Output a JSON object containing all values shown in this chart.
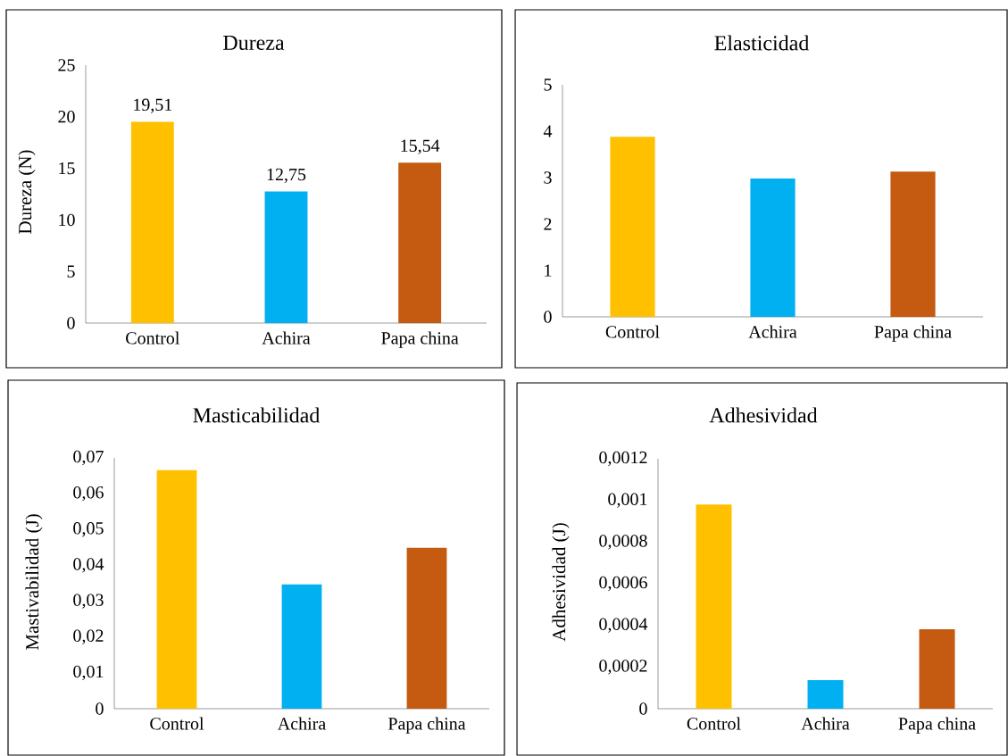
{
  "chart_data": [
    {
      "type": "bar",
      "title": "Dureza",
      "ylabel": "Dureza (N)",
      "categories": [
        "Control",
        "Achira",
        "Papa china"
      ],
      "values": [
        19.51,
        12.75,
        15.54
      ],
      "value_labels": [
        "19,51",
        "12,75",
        "15,54"
      ],
      "colors": [
        "#ffc000",
        "#00b0f0",
        "#c55a11"
      ],
      "ylim": [
        0,
        25
      ],
      "yticks": [
        0,
        5,
        10,
        15,
        20,
        25
      ]
    },
    {
      "type": "bar",
      "title": "Elasticidad",
      "categories": [
        "Control",
        "Achira",
        "Papa china"
      ],
      "values": [
        3.88,
        2.98,
        3.13
      ],
      "colors": [
        "#ffc000",
        "#00b0f0",
        "#c55a11"
      ],
      "ylim": [
        0,
        5
      ],
      "yticks": [
        0,
        1,
        2,
        3,
        4,
        5
      ]
    },
    {
      "type": "bar",
      "title": "Masticabilidad",
      "ylabel": "Mastivabilidad (J)",
      "categories": [
        "Control",
        "Achira",
        "Papa china"
      ],
      "values": [
        0.0666,
        0.0347,
        0.0449
      ],
      "colors": [
        "#ffc000",
        "#00b0f0",
        "#c55a11"
      ],
      "ylim": [
        0,
        0.07
      ],
      "yticks": [
        0,
        {
          "value": 0.01,
          "label": "0,01"
        },
        {
          "value": 0.02,
          "label": "0,02"
        },
        {
          "value": 0.03,
          "label": "0,03"
        },
        {
          "value": 0.04,
          "label": "0,04"
        },
        {
          "value": 0.05,
          "label": "0,05"
        },
        {
          "value": 0.06,
          "label": "0,06"
        },
        {
          "value": 0.07,
          "label": "0,07"
        }
      ]
    },
    {
      "type": "bar",
      "title": "Adhesividad",
      "ylabel": "Adhesividad (J)",
      "categories": [
        "Control",
        "Achira",
        "Papa china"
      ],
      "values": [
        0.00098,
        0.000137,
        0.000381
      ],
      "colors": [
        "#ffc000",
        "#00b0f0",
        "#c55a11"
      ],
      "ylim": [
        0,
        0.0012
      ],
      "yticks": [
        0,
        {
          "value": 0.0002,
          "label": "0,0002"
        },
        {
          "value": 0.0004,
          "label": "0,0004"
        },
        {
          "value": 0.0006,
          "label": "0,0006"
        },
        {
          "value": 0.0008,
          "label": "0,0008"
        },
        {
          "value": 0.001,
          "label": "0,001"
        },
        {
          "value": 0.0012,
          "label": "0,0012"
        }
      ]
    }
  ]
}
